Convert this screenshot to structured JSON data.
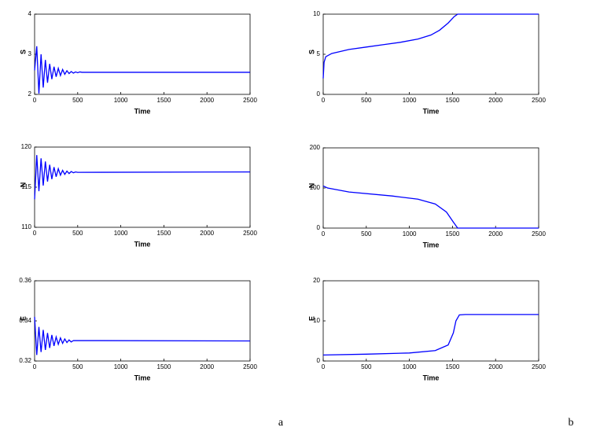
{
  "chart_data": [
    {
      "type": "line",
      "ylabel": "S",
      "xlabel": "Time",
      "color": "#0000ff",
      "x": [
        0,
        25,
        50,
        75,
        100,
        125,
        150,
        175,
        200,
        225,
        250,
        275,
        300,
        325,
        350,
        375,
        400,
        425,
        450,
        475,
        500,
        525,
        550,
        2500
      ],
      "values": [
        2.6,
        3.2,
        2.02,
        3.0,
        2.17,
        2.86,
        2.29,
        2.76,
        2.38,
        2.69,
        2.44,
        2.65,
        2.47,
        2.62,
        2.5,
        2.59,
        2.52,
        2.57,
        2.53,
        2.56,
        2.54,
        2.56,
        2.55,
        2.55
      ],
      "xlim": [
        0,
        2500
      ],
      "xticks": [
        0,
        500,
        1000,
        1500,
        2000,
        2500
      ],
      "ylim": [
        2,
        4
      ],
      "yticks": [
        2,
        3,
        4
      ]
    },
    {
      "type": "line",
      "ylabel": "N",
      "xlabel": "Time",
      "color": "#0000ff",
      "x": [
        0,
        25,
        50,
        75,
        100,
        125,
        150,
        175,
        200,
        225,
        250,
        275,
        300,
        325,
        350,
        375,
        400,
        425,
        450,
        475,
        500,
        2500
      ],
      "values": [
        113.5,
        119.0,
        114.5,
        118.6,
        115.2,
        118.2,
        115.7,
        117.8,
        116.0,
        117.5,
        116.3,
        117.3,
        116.5,
        117.1,
        116.6,
        117.0,
        116.7,
        116.95,
        116.8,
        116.9,
        116.85,
        116.9
      ],
      "xlim": [
        0,
        2500
      ],
      "xticks": [
        0,
        500,
        1000,
        1500,
        2000,
        2500
      ],
      "ylim": [
        110,
        120
      ],
      "yticks": [
        110,
        115,
        120
      ]
    },
    {
      "type": "line",
      "ylabel": "E",
      "xlabel": "Time",
      "color": "#0000ff",
      "x": [
        0,
        25,
        50,
        75,
        100,
        125,
        150,
        175,
        200,
        225,
        250,
        275,
        300,
        325,
        350,
        375,
        400,
        425,
        450,
        2500
      ],
      "values": [
        0.342,
        0.323,
        0.337,
        0.3245,
        0.3355,
        0.3255,
        0.334,
        0.3265,
        0.333,
        0.3275,
        0.332,
        0.3283,
        0.3315,
        0.3288,
        0.331,
        0.3292,
        0.3305,
        0.3295,
        0.3302,
        0.33
      ],
      "xlim": [
        0,
        2500
      ],
      "xticks": [
        0,
        500,
        1000,
        1500,
        2000,
        2500
      ],
      "ylim": [
        0.32,
        0.36
      ],
      "yticks": [
        0.32,
        0.34,
        0.36
      ]
    },
    {
      "type": "line",
      "ylabel": "S",
      "xlabel": "Time",
      "color": "#0000ff",
      "x": [
        0,
        10,
        30,
        100,
        300,
        500,
        700,
        900,
        1100,
        1250,
        1350,
        1450,
        1520,
        1560,
        2500
      ],
      "values": [
        2,
        4,
        4.7,
        5.1,
        5.6,
        5.9,
        6.2,
        6.5,
        6.9,
        7.4,
        8.0,
        8.9,
        9.7,
        10,
        10
      ],
      "xlim": [
        0,
        2500
      ],
      "xticks": [
        0,
        500,
        1000,
        1500,
        2000,
        2500
      ],
      "ylim": [
        0,
        10
      ],
      "yticks": [
        0,
        5,
        10
      ]
    },
    {
      "type": "line",
      "ylabel": "N",
      "xlabel": "Time",
      "color": "#0000ff",
      "x": [
        0,
        50,
        300,
        800,
        1100,
        1300,
        1430,
        1510,
        1560,
        2500
      ],
      "values": [
        105,
        100,
        90,
        80,
        72,
        60,
        40,
        15,
        0,
        0
      ],
      "xlim": [
        0,
        2500
      ],
      "xticks": [
        0,
        500,
        1000,
        1500,
        2000,
        2500
      ],
      "ylim": [
        0,
        200
      ],
      "yticks": [
        0,
        100,
        200
      ]
    },
    {
      "type": "line",
      "ylabel": "E",
      "xlabel": "Time",
      "color": "#0000ff",
      "x": [
        0,
        500,
        1000,
        1300,
        1450,
        1510,
        1540,
        1580,
        1650,
        2500
      ],
      "values": [
        1.5,
        1.7,
        2.0,
        2.6,
        4,
        7,
        10,
        11.5,
        11.6,
        11.6
      ],
      "xlim": [
        0,
        2500
      ],
      "xticks": [
        0,
        500,
        1000,
        1500,
        2000,
        2500
      ],
      "ylim": [
        0,
        20
      ],
      "yticks": [
        0,
        10,
        20
      ]
    }
  ],
  "panel_labels": [
    "a",
    "b"
  ]
}
